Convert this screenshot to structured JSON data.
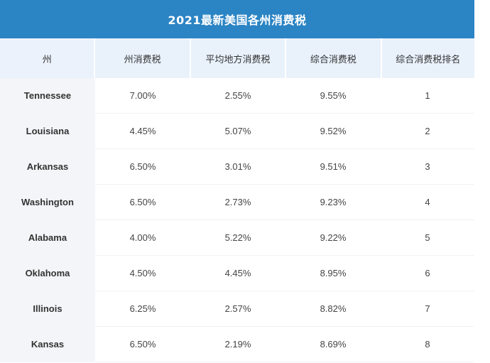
{
  "table": {
    "title": "2021最新美国各州消费税",
    "headers": [
      "州",
      "州消费税",
      "平均地方消费税",
      "综合消费税",
      "综合消费税排名"
    ],
    "rows": [
      {
        "state": "Tennessee",
        "state_tax": "7.00%",
        "local_tax": "2.55%",
        "combined_tax": "9.55%",
        "rank": "1"
      },
      {
        "state": "Louisiana",
        "state_tax": "4.45%",
        "local_tax": "5.07%",
        "combined_tax": "9.52%",
        "rank": "2"
      },
      {
        "state": "Arkansas",
        "state_tax": "6.50%",
        "local_tax": "3.01%",
        "combined_tax": "9.51%",
        "rank": "3"
      },
      {
        "state": "Washington",
        "state_tax": "6.50%",
        "local_tax": "2.73%",
        "combined_tax": "9.23%",
        "rank": "4"
      },
      {
        "state": "Alabama",
        "state_tax": "4.00%",
        "local_tax": "5.22%",
        "combined_tax": "9.22%",
        "rank": "5"
      },
      {
        "state": "Oklahoma",
        "state_tax": "4.50%",
        "local_tax": "4.45%",
        "combined_tax": "8.95%",
        "rank": "6"
      },
      {
        "state": "Illinois",
        "state_tax": "6.25%",
        "local_tax": "2.57%",
        "combined_tax": "8.82%",
        "rank": "7"
      },
      {
        "state": "Kansas",
        "state_tax": "6.50%",
        "local_tax": "2.19%",
        "combined_tax": "8.69%",
        "rank": "8"
      }
    ]
  },
  "colors": {
    "title_bg": "#2b84c4",
    "header_bg": "#e9f1fb",
    "state_col_bg": "#f3f5f8"
  }
}
